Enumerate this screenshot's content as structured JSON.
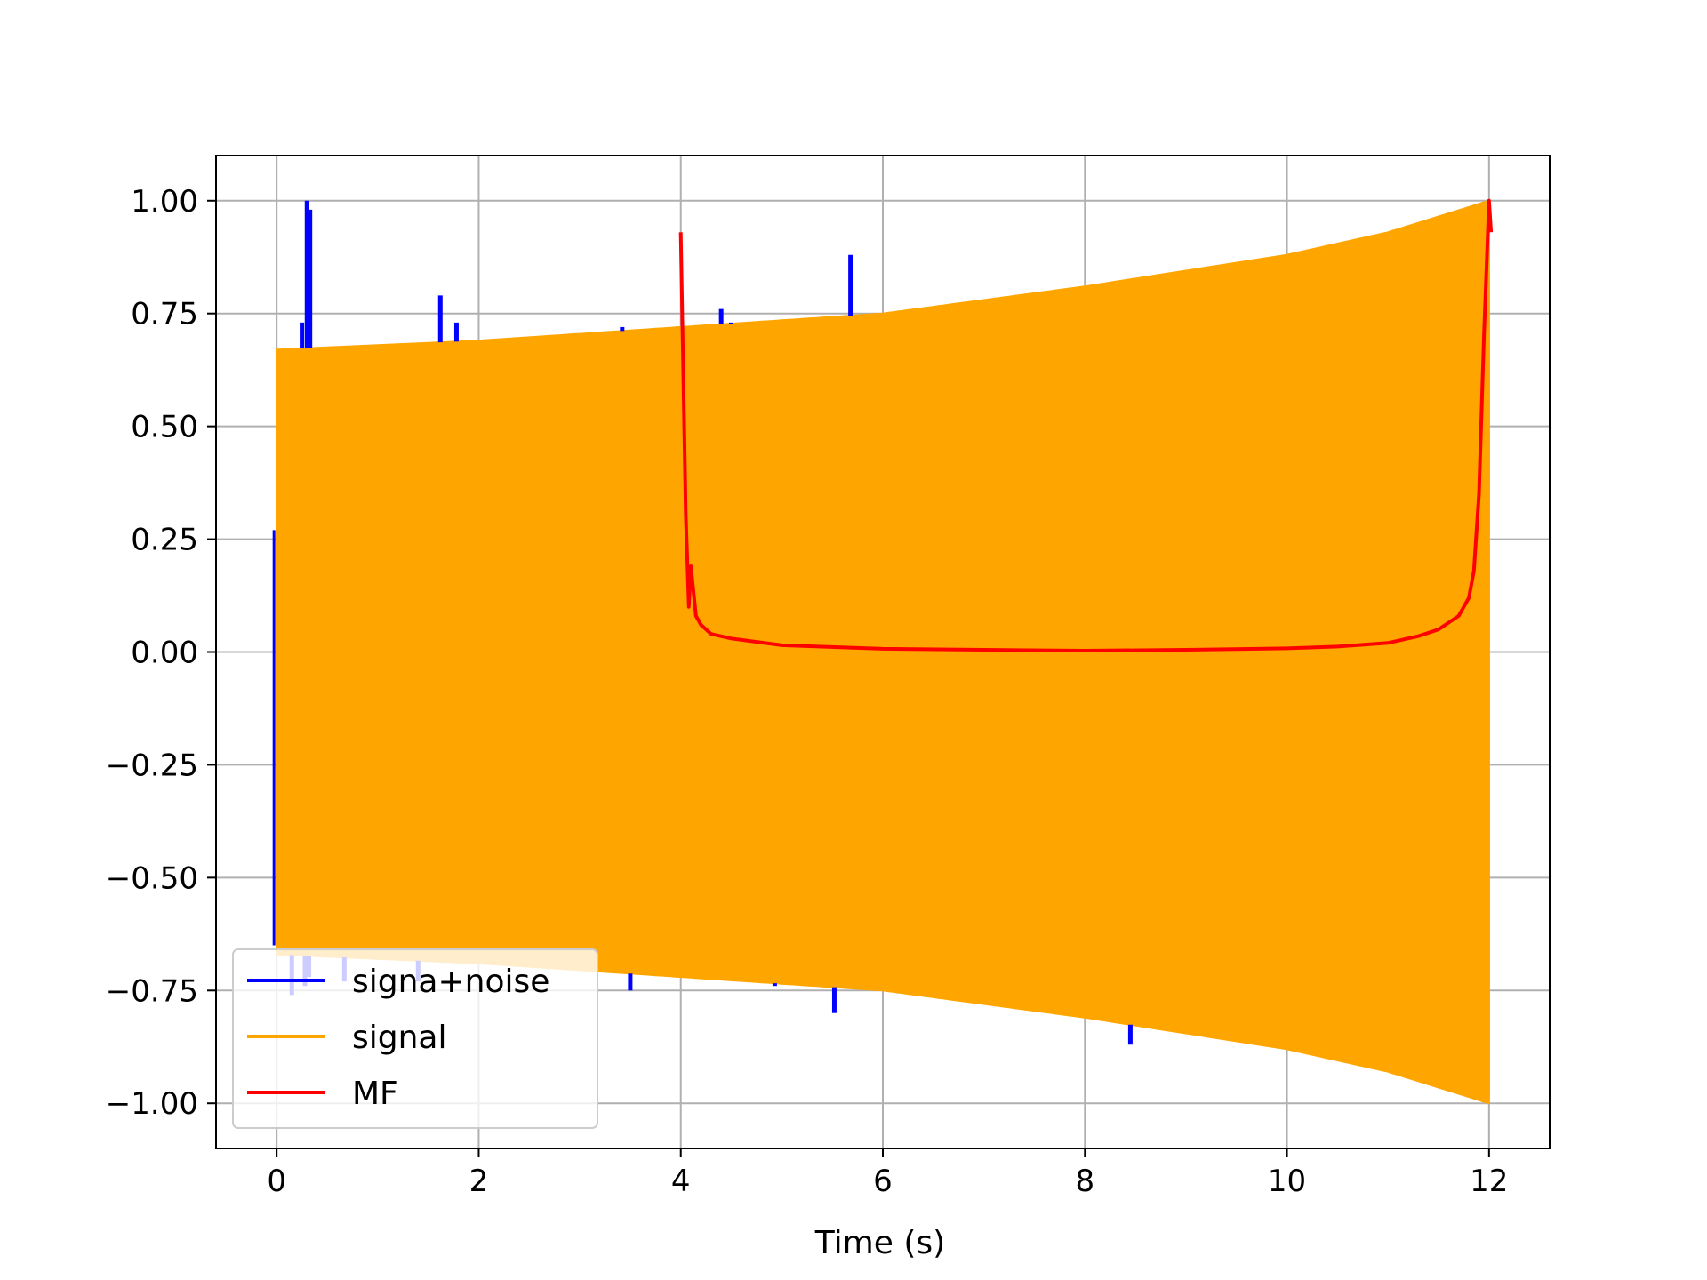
{
  "chart_data": {
    "type": "line",
    "title": "",
    "xlabel": "Time (s)",
    "ylabel": "",
    "xlim": [
      -0.6,
      12.6
    ],
    "ylim": [
      -1.1,
      1.1
    ],
    "grid": true,
    "legend_position": "lower-left",
    "x_ticks": [
      0,
      2,
      4,
      6,
      8,
      10,
      12
    ],
    "x_tick_labels": [
      "0",
      "2",
      "4",
      "6",
      "8",
      "10",
      "12"
    ],
    "y_ticks": [
      1.0,
      0.75,
      0.5,
      0.25,
      0.0,
      -0.25,
      -0.5,
      -0.75,
      -1.0
    ],
    "y_tick_labels": [
      "1.00",
      "0.75",
      "0.50",
      "0.25",
      "0.00",
      "−0.25",
      "−0.50",
      "−0.75",
      "−1.00"
    ],
    "series": [
      {
        "name": "signa+noise",
        "color": "#0000ff",
        "spikes": [
          {
            "x": 0.25,
            "y": 0.73
          },
          {
            "x": 0.3,
            "y": 1.0
          },
          {
            "x": 0.33,
            "y": 0.98
          },
          {
            "x": 1.62,
            "y": 0.79
          },
          {
            "x": 1.78,
            "y": 0.73
          },
          {
            "x": 3.42,
            "y": 0.72
          },
          {
            "x": 4.4,
            "y": 0.76
          },
          {
            "x": 4.5,
            "y": 0.73
          },
          {
            "x": 5.68,
            "y": 0.88
          },
          {
            "x": 0.15,
            "y": -0.76
          },
          {
            "x": 0.28,
            "y": -0.74
          },
          {
            "x": 0.32,
            "y": -0.72
          },
          {
            "x": 0.67,
            "y": -0.73
          },
          {
            "x": 1.4,
            "y": -0.73
          },
          {
            "x": 3.5,
            "y": -0.75
          },
          {
            "x": 4.93,
            "y": -0.74
          },
          {
            "x": 5.52,
            "y": -0.8
          },
          {
            "x": 8.45,
            "y": -0.87
          }
        ]
      },
      {
        "name": "signal",
        "color": "#ffa500",
        "envelope_x": [
          0,
          2,
          4,
          6,
          8,
          10,
          11,
          12
        ],
        "envelope_y": [
          0.67,
          0.69,
          0.72,
          0.75,
          0.81,
          0.88,
          0.93,
          1.0
        ]
      },
      {
        "name": "MF",
        "color": "#ff0000",
        "x": [
          4.0,
          4.05,
          4.08,
          4.1,
          4.15,
          4.2,
          4.3,
          4.5,
          5.0,
          6.0,
          7.0,
          8.0,
          9.0,
          10.0,
          10.5,
          11.0,
          11.3,
          11.5,
          11.7,
          11.8,
          11.85,
          11.9,
          11.95,
          12.0,
          12.02
        ],
        "y": [
          0.93,
          0.3,
          0.1,
          0.19,
          0.08,
          0.06,
          0.04,
          0.03,
          0.015,
          0.007,
          0.005,
          0.003,
          0.005,
          0.008,
          0.012,
          0.02,
          0.035,
          0.05,
          0.08,
          0.12,
          0.18,
          0.35,
          0.7,
          1.0,
          0.93
        ]
      }
    ]
  }
}
